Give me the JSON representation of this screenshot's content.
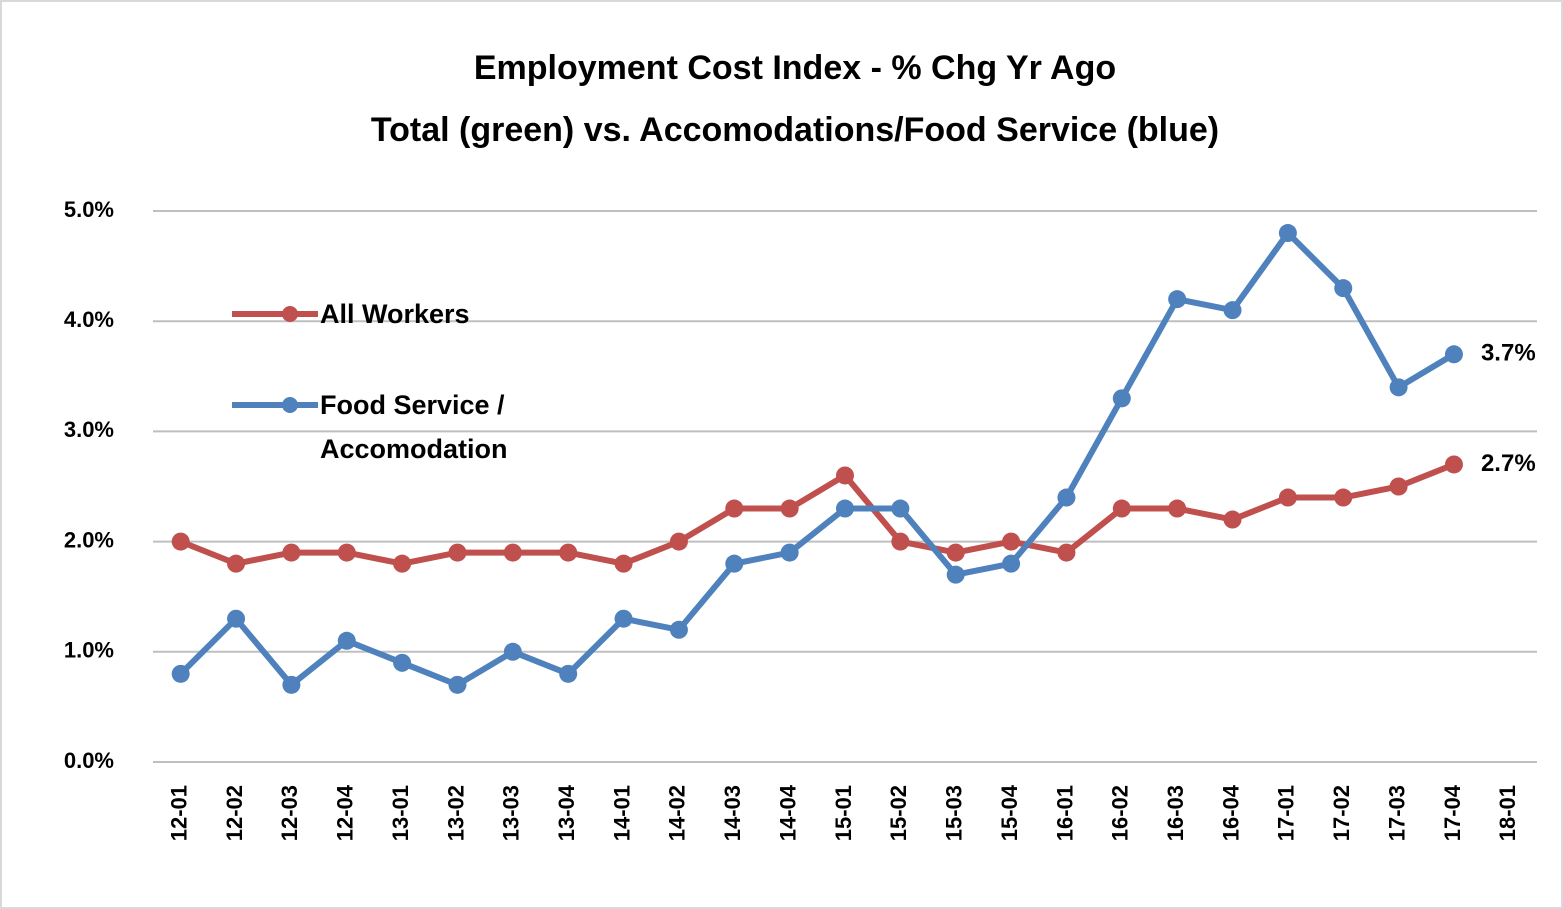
{
  "chart_data": {
    "type": "line",
    "title": "Employment Cost Index - % Chg Yr Ago",
    "subtitle": "Total (green) vs. Accomodations/Food Service (blue)",
    "categories": [
      "12-01",
      "12-02",
      "12-03",
      "12-04",
      "13-01",
      "13-02",
      "13-03",
      "13-04",
      "14-01",
      "14-02",
      "14-03",
      "14-04",
      "15-01",
      "15-02",
      "15-03",
      "15-04",
      "16-01",
      "16-02",
      "16-03",
      "16-04",
      "17-01",
      "17-02",
      "17-03",
      "17-04",
      "18-01"
    ],
    "series": [
      {
        "name": "All Workers",
        "color": "#c0504d",
        "values": [
          2.0,
          1.8,
          1.9,
          1.9,
          1.8,
          1.9,
          1.9,
          1.9,
          1.8,
          2.0,
          2.3,
          2.3,
          2.6,
          2.0,
          1.9,
          2.0,
          1.9,
          2.3,
          2.3,
          2.2,
          2.4,
          2.4,
          2.5,
          2.7,
          null
        ],
        "value_labels": [
          null,
          null,
          null,
          null,
          null,
          null,
          null,
          null,
          null,
          null,
          null,
          null,
          null,
          null,
          null,
          null,
          null,
          null,
          null,
          null,
          null,
          null,
          null,
          "2.7%",
          null
        ]
      },
      {
        "name": "Food Service / Accomodation",
        "color": "#4f81bd",
        "values": [
          0.8,
          1.3,
          0.7,
          1.1,
          0.9,
          0.7,
          1.0,
          0.8,
          1.3,
          1.2,
          1.8,
          1.9,
          2.3,
          2.3,
          1.7,
          1.8,
          2.4,
          3.3,
          4.2,
          4.1,
          4.8,
          4.3,
          3.4,
          3.7,
          null
        ],
        "value_labels": [
          null,
          null,
          null,
          null,
          null,
          null,
          null,
          null,
          null,
          null,
          null,
          null,
          null,
          null,
          null,
          null,
          null,
          null,
          null,
          null,
          null,
          null,
          null,
          "3.7%",
          null
        ]
      }
    ],
    "ylim": [
      0,
      5
    ],
    "yticks": [
      {
        "value": 0,
        "label": "0.0%"
      },
      {
        "value": 1,
        "label": "1.0%"
      },
      {
        "value": 2,
        "label": "2.0%"
      },
      {
        "value": 3,
        "label": "3.0%"
      },
      {
        "value": 4,
        "label": "4.0%"
      },
      {
        "value": 5,
        "label": "5.0%"
      }
    ],
    "grid": true
  }
}
